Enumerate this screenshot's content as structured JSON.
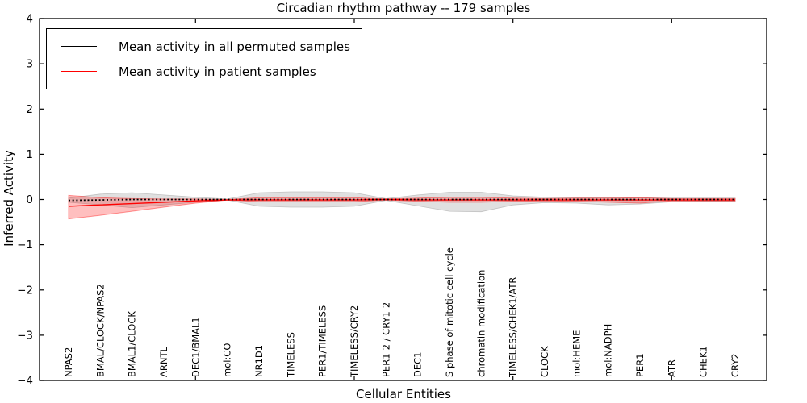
{
  "chart_data": {
    "type": "line",
    "title": "Circadian rhythm pathway -- 179 samples",
    "xlabel": "Cellular Entities",
    "ylabel": "Inferred Activity",
    "ylim": [
      -4,
      4
    ],
    "yticks": [
      -4,
      -3,
      -2,
      -1,
      0,
      1,
      2,
      3,
      4
    ],
    "xtick_indices": [
      4,
      9,
      14,
      19
    ],
    "grid": false,
    "legend": {
      "position": "upper left",
      "entries": [
        {
          "label": "Mean activity in all permuted samples",
          "color": "#000000"
        },
        {
          "label": "Mean activity in patient samples",
          "color": "#ff0000"
        }
      ]
    },
    "categories": [
      "NPAS2",
      "BMAL/CLOCK/NPAS2",
      "BMAL1/CLOCK",
      "ARNTL",
      "DEC1/BMAL1",
      "mol:CO",
      "NR1D1",
      "TIMELESS",
      "PER1/TIMELESS",
      "TIMELESS/CRY2",
      "PER1-2 / CRY1-2",
      "DEC1",
      "S phase of mitotic cell cycle",
      "chromatin modification",
      "TIMELESS/CHEK1/ATR",
      "CLOCK",
      "mol:HEME",
      "mol:NADPH",
      "PER1",
      "ATR",
      "CHEK1",
      "CRY2"
    ],
    "series": [
      {
        "name": "Mean activity in all permuted samples",
        "line_color": "#000000",
        "line_style": "dotted",
        "band_color": "#bbbbbb",
        "mean": [
          -0.02,
          -0.01,
          0,
          0,
          0,
          0,
          0,
          0,
          0,
          0,
          0,
          0,
          0,
          0,
          0,
          0,
          0,
          0,
          0,
          0,
          0,
          0
        ],
        "band_upper": [
          0.03,
          0.12,
          0.15,
          0.1,
          0.05,
          0.01,
          0.15,
          0.17,
          0.17,
          0.15,
          0.02,
          0.1,
          0.16,
          0.16,
          0.08,
          0.05,
          0.04,
          0.04,
          0.04,
          0.03,
          0.03,
          0.03
        ],
        "band_lower": [
          -0.06,
          -0.12,
          -0.18,
          -0.12,
          -0.06,
          -0.01,
          -0.15,
          -0.17,
          -0.17,
          -0.15,
          -0.02,
          -0.14,
          -0.26,
          -0.27,
          -0.12,
          -0.07,
          -0.08,
          -0.12,
          -0.1,
          -0.05,
          -0.04,
          -0.04
        ]
      },
      {
        "name": "Mean activity in patient samples",
        "line_color": "#ff0000",
        "line_style": "solid",
        "band_color": "#ff0000",
        "mean": [
          -0.15,
          -0.12,
          -0.09,
          -0.06,
          -0.03,
          -0.01,
          -0.01,
          -0.01,
          -0.01,
          -0.01,
          0,
          -0.01,
          -0.01,
          -0.01,
          -0.01,
          -0.01,
          -0.01,
          -0.01,
          -0.01,
          -0.01,
          -0.01,
          -0.01
        ],
        "band_upper": [
          0.09,
          0.04,
          0.02,
          0.01,
          0.01,
          0.0,
          0.04,
          0.04,
          0.04,
          0.04,
          0.01,
          0.03,
          0.05,
          0.05,
          0.03,
          0.02,
          0.03,
          0.03,
          0.04,
          0.02,
          0.02,
          0.02
        ],
        "band_lower": [
          -0.43,
          -0.35,
          -0.26,
          -0.17,
          -0.08,
          -0.01,
          -0.05,
          -0.05,
          -0.05,
          -0.05,
          -0.01,
          -0.04,
          -0.06,
          -0.06,
          -0.04,
          -0.03,
          -0.04,
          -0.06,
          -0.08,
          -0.03,
          -0.03,
          -0.03
        ]
      }
    ]
  }
}
